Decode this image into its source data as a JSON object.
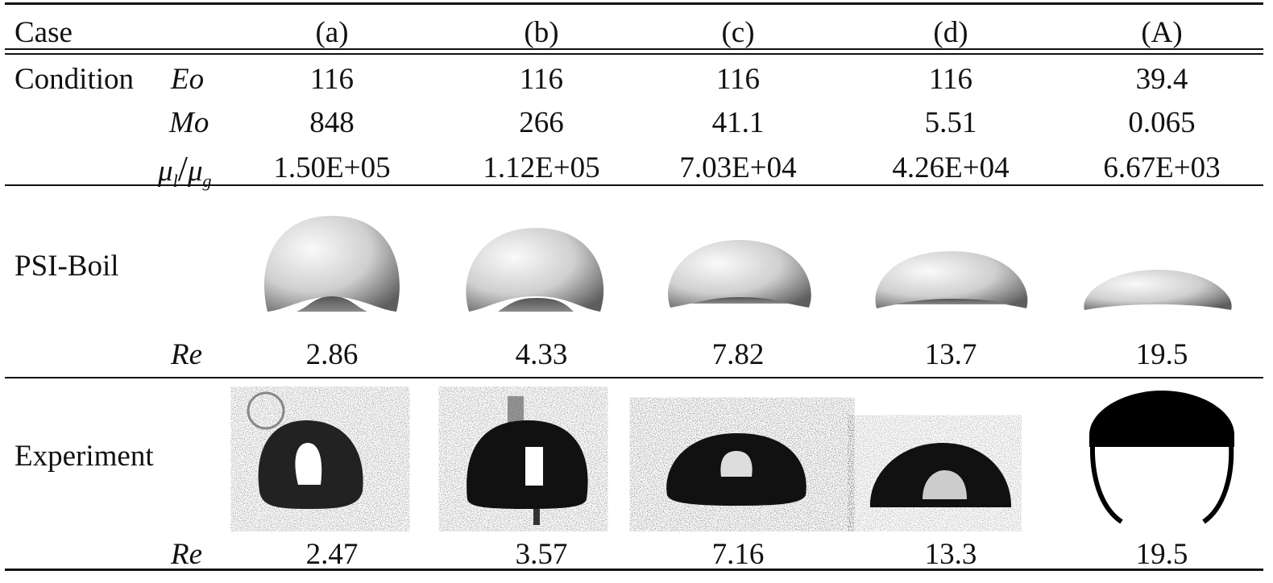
{
  "header": {
    "case_label": "Case",
    "cases": [
      "(a)",
      "(b)",
      "(c)",
      "(d)",
      "(A)"
    ]
  },
  "condition": {
    "label": "Condition",
    "eo": {
      "symbol": "Eo",
      "values": [
        "116",
        "116",
        "116",
        "116",
        "39.4"
      ]
    },
    "mo": {
      "symbol": "Mo",
      "values": [
        "848",
        "266",
        "41.1",
        "5.51",
        "0.065"
      ]
    },
    "viscosity_ratio": {
      "symbol_num": "μ",
      "sub_num": "l",
      "slash": "/",
      "symbol_den": "μ",
      "sub_den": "g",
      "values": [
        "1.50E+05",
        "1.12E+05",
        "7.03E+04",
        "4.26E+04",
        "6.67E+03"
      ]
    }
  },
  "simulation": {
    "label": "PSI-Boil",
    "re_symbol": "Re",
    "re_values": [
      "2.86",
      "4.33",
      "7.82",
      "13.7",
      "19.5"
    ]
  },
  "experiment": {
    "label": "Experiment",
    "re_symbol": "Re",
    "re_values": [
      "2.47",
      "3.57",
      "7.16",
      "13.3",
      "19.5"
    ]
  }
}
